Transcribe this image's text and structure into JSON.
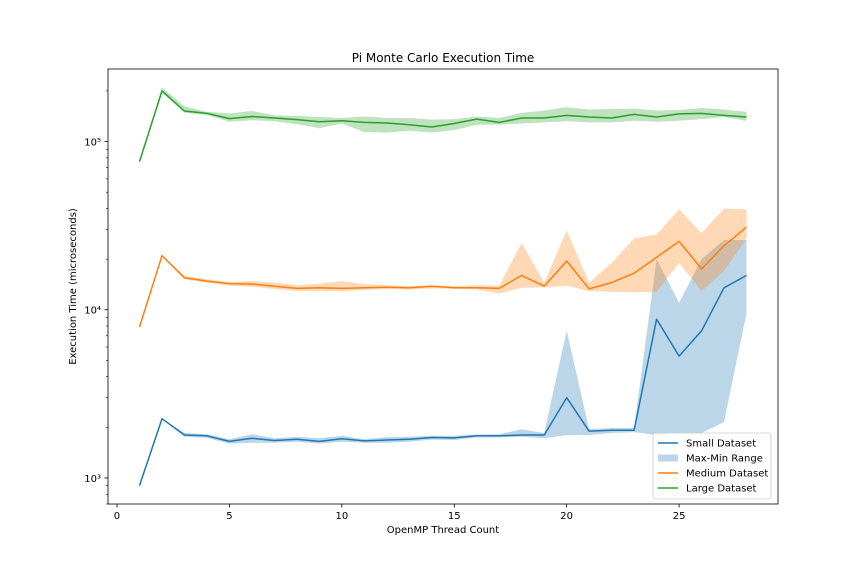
{
  "chart_data": {
    "type": "line",
    "title": "Pi Monte Carlo Execution Time",
    "xlabel": "OpenMP Thread Count",
    "ylabel": "Execution Time (microseconds)",
    "y_scale": "log",
    "xlim": [
      -0.4,
      29.4
    ],
    "ylim": [
      700,
      270000
    ],
    "x_ticks": [
      0,
      5,
      10,
      15,
      20,
      25
    ],
    "x_tick_labels": [
      "0",
      "5",
      "10",
      "15",
      "20",
      "25"
    ],
    "y_ticks": [
      1000,
      10000,
      100000
    ],
    "y_tick_labels": [
      "10³",
      "10⁴",
      "10⁵"
    ],
    "grid": false,
    "legend_position": "lower-right",
    "legend_entries": [
      {
        "label": "Small Dataset",
        "kind": "line",
        "color": "#1f77b4"
      },
      {
        "label": "Max-Min Range",
        "kind": "patch",
        "color": "#1f77b4"
      },
      {
        "label": "Medium Dataset",
        "kind": "line",
        "color": "#ff7f0e"
      },
      {
        "label": "Large Dataset",
        "kind": "line",
        "color": "#2ca02c"
      }
    ],
    "x": [
      1,
      2,
      3,
      4,
      5,
      6,
      7,
      8,
      9,
      10,
      11,
      12,
      13,
      14,
      15,
      16,
      17,
      18,
      19,
      20,
      21,
      22,
      23,
      24,
      25,
      26,
      27,
      28
    ],
    "series": [
      {
        "name": "Small Dataset",
        "color": "#1f77b4",
        "values": [
          900,
          2250,
          1800,
          1780,
          1650,
          1720,
          1670,
          1700,
          1650,
          1710,
          1660,
          1680,
          1700,
          1740,
          1730,
          1780,
          1780,
          1800,
          1800,
          3000,
          1900,
          1920,
          1920,
          8800,
          5300,
          7500,
          13500,
          16000
        ],
        "range_max": [
          900,
          2250,
          1850,
          1820,
          1700,
          1820,
          1720,
          1760,
          1720,
          1780,
          1700,
          1750,
          1760,
          1780,
          1780,
          1810,
          1820,
          1950,
          1850,
          7500,
          1950,
          1980,
          1980,
          20000,
          11000,
          20000,
          26000,
          26000
        ],
        "range_min": [
          900,
          2250,
          1760,
          1730,
          1600,
          1620,
          1620,
          1640,
          1600,
          1640,
          1620,
          1620,
          1640,
          1690,
          1680,
          1740,
          1740,
          1760,
          1720,
          1800,
          1800,
          1850,
          1870,
          1800,
          1850,
          1850,
          2150,
          9500
        ]
      },
      {
        "name": "Medium Dataset",
        "color": "#ff7f0e",
        "values": [
          7900,
          21000,
          15500,
          14800,
          14300,
          14200,
          13800,
          13400,
          13500,
          13400,
          13500,
          13600,
          13500,
          13800,
          13500,
          13500,
          13400,
          16000,
          13800,
          19500,
          13300,
          14500,
          16500,
          20500,
          25500,
          17500,
          24000,
          31000
        ],
        "range_max": [
          7900,
          21000,
          15900,
          15200,
          14600,
          14800,
          14500,
          14000,
          14300,
          14800,
          14200,
          14000,
          13800,
          14000,
          13800,
          14000,
          13900,
          25000,
          14500,
          29500,
          14500,
          19000,
          26500,
          28000,
          39500,
          28500,
          40000,
          39500
        ],
        "range_min": [
          7900,
          21000,
          15200,
          14500,
          13900,
          13700,
          13300,
          12900,
          12900,
          12900,
          13100,
          13300,
          13200,
          13400,
          13300,
          13200,
          12500,
          13500,
          13600,
          13900,
          12900,
          12800,
          12700,
          12800,
          19000,
          12900,
          17000,
          26500
        ]
      },
      {
        "name": "Large Dataset",
        "color": "#2ca02c",
        "values": [
          76000,
          200000,
          152000,
          147000,
          137000,
          141000,
          138000,
          135000,
          131000,
          133000,
          130000,
          129000,
          126000,
          122000,
          128000,
          136000,
          130000,
          138000,
          138000,
          143000,
          140000,
          138000,
          145000,
          140000,
          146000,
          147000,
          143000,
          140000
        ],
        "range_max": [
          76000,
          210000,
          162000,
          150000,
          147000,
          152000,
          143000,
          142000,
          140000,
          138000,
          141000,
          138000,
          138000,
          135000,
          136000,
          141000,
          138000,
          148000,
          153000,
          160000,
          155000,
          156000,
          157000,
          153000,
          154000,
          158000,
          155000,
          150000
        ],
        "range_min": [
          76000,
          195000,
          148000,
          144000,
          131000,
          134000,
          132000,
          127000,
          120000,
          128000,
          114000,
          113000,
          116000,
          113000,
          117000,
          126000,
          126000,
          128000,
          130000,
          132000,
          130000,
          130000,
          133000,
          131000,
          133000,
          136000,
          140000,
          133000
        ]
      }
    ]
  }
}
